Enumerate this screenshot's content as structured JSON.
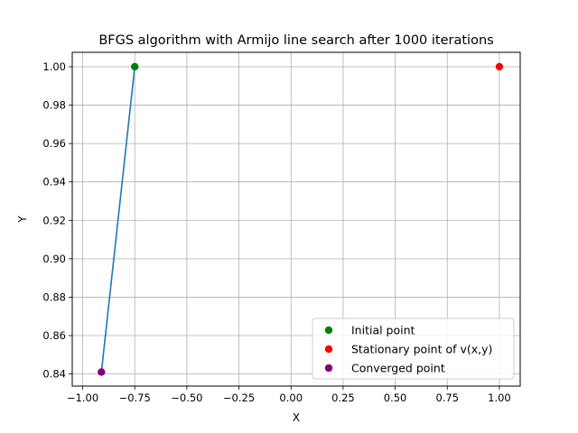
{
  "chart_data": {
    "type": "scatter",
    "title": "BFGS algorithm with Armijo line search after 1000 iterations",
    "xlabel": "X",
    "ylabel": "Y",
    "xlim": [
      -1.05,
      1.1
    ],
    "ylim": [
      0.8337,
      1.0075
    ],
    "xticks": [
      {
        "value": -1.0,
        "label": "−1.00"
      },
      {
        "value": -0.75,
        "label": "−0.75"
      },
      {
        "value": -0.5,
        "label": "−0.50"
      },
      {
        "value": -0.25,
        "label": "−0.25"
      },
      {
        "value": 0.0,
        "label": "0.00"
      },
      {
        "value": 0.25,
        "label": "0.25"
      },
      {
        "value": 0.5,
        "label": "0.50"
      },
      {
        "value": 0.75,
        "label": "0.75"
      },
      {
        "value": 1.0,
        "label": "1.00"
      }
    ],
    "yticks": [
      {
        "value": 0.84,
        "label": "0.84"
      },
      {
        "value": 0.86,
        "label": "0.86"
      },
      {
        "value": 0.88,
        "label": "0.88"
      },
      {
        "value": 0.9,
        "label": "0.90"
      },
      {
        "value": 0.92,
        "label": "0.92"
      },
      {
        "value": 0.94,
        "label": "0.94"
      },
      {
        "value": 0.96,
        "label": "0.96"
      },
      {
        "value": 0.98,
        "label": "0.98"
      },
      {
        "value": 1.0,
        "label": "1.00"
      }
    ],
    "grid": true,
    "legend_position": "lower-right",
    "path": {
      "color": "#1f77b4",
      "points": [
        {
          "x": -0.75,
          "y": 1.0
        },
        {
          "x": -0.91,
          "y": 0.841
        }
      ]
    },
    "series": [
      {
        "name": "Initial point",
        "color": "#008000",
        "points": [
          {
            "x": -0.75,
            "y": 1.0
          }
        ]
      },
      {
        "name": "Stationary point of v(x,y)",
        "color": "#ff0000",
        "points": [
          {
            "x": 1.0,
            "y": 1.0
          }
        ]
      },
      {
        "name": "Converged point",
        "color": "#800080",
        "points": [
          {
            "x": -0.91,
            "y": 0.841
          }
        ]
      }
    ]
  }
}
